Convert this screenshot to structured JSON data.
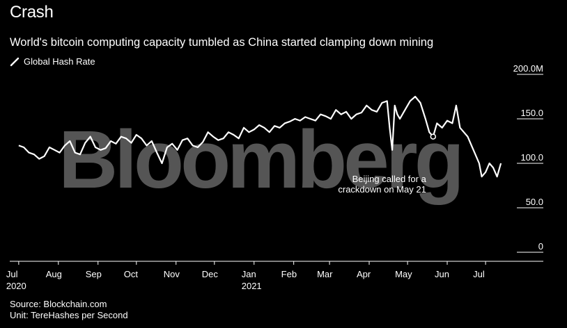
{
  "header": {
    "title": "Crash",
    "subtitle": "World's bitcoin computing capacity tumbled as China started clamping down mining",
    "legend_label": "Global Hash Rate"
  },
  "footer": {
    "source": "Source: Blockchain.com",
    "unit": "Unit: TereHashes per Second"
  },
  "watermark": "Bloomberg",
  "colors": {
    "background": "#000000",
    "line": "#ffffff",
    "watermark": "#555555"
  },
  "chart_data": {
    "type": "line",
    "title": "Crash",
    "subtitle": "World's bitcoin computing capacity tumbled as China started clamping down mining",
    "series": [
      {
        "name": "Global Hash Rate",
        "x": [
          "2020-07-01",
          "2020-07-05",
          "2020-07-09",
          "2020-07-13",
          "2020-07-17",
          "2020-07-21",
          "2020-07-25",
          "2020-07-29",
          "2020-08-02",
          "2020-08-06",
          "2020-08-10",
          "2020-08-14",
          "2020-08-18",
          "2020-08-22",
          "2020-08-26",
          "2020-08-30",
          "2020-09-03",
          "2020-09-07",
          "2020-09-11",
          "2020-09-15",
          "2020-09-19",
          "2020-09-23",
          "2020-09-27",
          "2020-10-01",
          "2020-10-05",
          "2020-10-09",
          "2020-10-13",
          "2020-10-17",
          "2020-10-21",
          "2020-10-25",
          "2020-10-29",
          "2020-11-02",
          "2020-11-06",
          "2020-11-10",
          "2020-11-14",
          "2020-11-18",
          "2020-11-22",
          "2020-11-26",
          "2020-11-30",
          "2020-12-04",
          "2020-12-08",
          "2020-12-12",
          "2020-12-16",
          "2020-12-20",
          "2020-12-24",
          "2020-12-28",
          "2021-01-01",
          "2021-01-05",
          "2021-01-09",
          "2021-01-13",
          "2021-01-17",
          "2021-01-21",
          "2021-01-25",
          "2021-01-29",
          "2021-02-02",
          "2021-02-06",
          "2021-02-10",
          "2021-02-14",
          "2021-02-18",
          "2021-02-22",
          "2021-02-26",
          "2021-03-02",
          "2021-03-06",
          "2021-03-10",
          "2021-03-14",
          "2021-03-18",
          "2021-03-22",
          "2021-03-26",
          "2021-03-30",
          "2021-04-03",
          "2021-04-07",
          "2021-04-11",
          "2021-04-15",
          "2021-04-17",
          "2021-04-19",
          "2021-04-21",
          "2021-04-23",
          "2021-04-25",
          "2021-04-29",
          "2021-05-03",
          "2021-05-07",
          "2021-05-11",
          "2021-05-15",
          "2021-05-18",
          "2021-05-21",
          "2021-05-24",
          "2021-05-28",
          "2021-06-01",
          "2021-06-05",
          "2021-06-08",
          "2021-06-11",
          "2021-06-14",
          "2021-06-17",
          "2021-06-20",
          "2021-06-23",
          "2021-06-26",
          "2021-06-28",
          "2021-07-01",
          "2021-07-04",
          "2021-07-07",
          "2021-07-10",
          "2021-07-13"
        ],
        "values": [
          120,
          118,
          112,
          110,
          105,
          108,
          118,
          115,
          112,
          120,
          125,
          112,
          110,
          123,
          130,
          118,
          115,
          117,
          125,
          122,
          130,
          128,
          123,
          132,
          128,
          120,
          125,
          112,
          100,
          118,
          122,
          115,
          126,
          128,
          120,
          118,
          124,
          135,
          130,
          126,
          128,
          135,
          132,
          128,
          140,
          135,
          138,
          143,
          140,
          135,
          142,
          140,
          145,
          147,
          150,
          148,
          152,
          150,
          148,
          155,
          153,
          150,
          160,
          155,
          158,
          150,
          155,
          157,
          165,
          160,
          158,
          168,
          170,
          140,
          115,
          165,
          155,
          150,
          160,
          170,
          175,
          168,
          150,
          135,
          130,
          145,
          140,
          148,
          145,
          165,
          140,
          135,
          130,
          120,
          110,
          100,
          85,
          90,
          100,
          95,
          85,
          100
        ]
      }
    ],
    "annotation": {
      "date": "2021-05-21",
      "text_lines": [
        "Beijing called for a",
        "crackdown on May 21"
      ]
    },
    "x_ticks": [
      {
        "label": "Jul",
        "sub": "2020",
        "date": "2020-07-01"
      },
      {
        "label": "Aug",
        "sub": "",
        "date": "2020-08-01"
      },
      {
        "label": "Sep",
        "sub": "",
        "date": "2020-09-01"
      },
      {
        "label": "Oct",
        "sub": "",
        "date": "2020-10-01"
      },
      {
        "label": "Nov",
        "sub": "",
        "date": "2020-11-01"
      },
      {
        "label": "Dec",
        "sub": "",
        "date": "2020-12-01"
      },
      {
        "label": "Jan",
        "sub": "2021",
        "date": "2021-01-01"
      },
      {
        "label": "Feb",
        "sub": "",
        "date": "2021-02-01"
      },
      {
        "label": "Mar",
        "sub": "",
        "date": "2021-03-01"
      },
      {
        "label": "Apr",
        "sub": "",
        "date": "2021-04-01"
      },
      {
        "label": "May",
        "sub": "",
        "date": "2021-05-01"
      },
      {
        "label": "Jun",
        "sub": "",
        "date": "2021-06-01"
      },
      {
        "label": "Jul",
        "sub": "",
        "date": "2021-07-01"
      }
    ],
    "y_ticks": [
      {
        "label": "200.0M",
        "value": 200
      },
      {
        "label": "150.0",
        "value": 150
      },
      {
        "label": "100.0",
        "value": 100
      },
      {
        "label": "50.0",
        "value": 50
      },
      {
        "label": "0",
        "value": 0
      }
    ],
    "xlim": [
      "2020-06-24",
      "2021-07-20"
    ],
    "ylim": [
      0,
      200
    ],
    "y_axis_position": "right",
    "grid": false
  }
}
